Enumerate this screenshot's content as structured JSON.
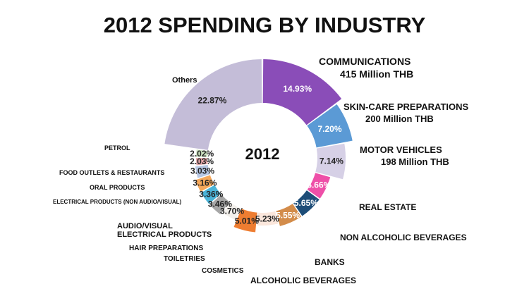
{
  "chart_data": {
    "type": "pie",
    "title": "2012 SPENDING BY INDUSTRY",
    "center_label": "2012",
    "slices": [
      {
        "name": "COMMUNICATIONS",
        "percent": 14.93,
        "value_label": "14.93%",
        "amount": "415 Million THB",
        "color": "#8a4db8"
      },
      {
        "name": "SKIN-CARE PREPARATIONS",
        "percent": 7.2,
        "value_label": "7.20%",
        "amount": "200 Million THB",
        "color": "#5b9ad5"
      },
      {
        "name": "MOTOR VEHICLES",
        "percent": 7.14,
        "value_label": "7.14%",
        "amount": "198 Million THB",
        "color": "#d6d0e6"
      },
      {
        "name": "REAL ESTATE",
        "percent": 5.66,
        "value_label": "5.66%",
        "color": "#ee4fa8"
      },
      {
        "name": "NON ALCOHOLIC BEVERAGES",
        "percent": 5.65,
        "value_label": "5.65%",
        "color": "#1e4d78"
      },
      {
        "name": "BANKS",
        "percent": 5.55,
        "value_label": "5.55%",
        "color": "#d38c4a"
      },
      {
        "name": "ALCOHOLIC BEVERAGES",
        "percent": 5.23,
        "value_label": "5.23%",
        "color": "#fbe7dc"
      },
      {
        "name": "COSMETICS",
        "percent": 5.01,
        "value_label": "5.01%",
        "color": "#ee7d31"
      },
      {
        "name": "TOILETRIES",
        "percent": 3.7,
        "value_label": "3.70%",
        "color": "#f3f0ec"
      },
      {
        "name": "HAIR PREPARATIONS",
        "percent": 3.46,
        "value_label": "3.46%",
        "color": "#a6a6a6"
      },
      {
        "name": "AUDIO/VISUAL ELECTRICAL PRODUCTS",
        "percent": 3.36,
        "value_label": "3.36%",
        "color": "#4bb4d8"
      },
      {
        "name": "ELECTRICAL PRODUCTS (NON AUDIO/VISUAL)",
        "percent": 3.16,
        "value_label": "3.16%",
        "color": "#f6a85a"
      },
      {
        "name": "ORAL PRODUCTS",
        "percent": 3.03,
        "value_label": "3.03%",
        "color": "#b7c7e3"
      },
      {
        "name": "FOOD OUTLETS & RESTAURANTS",
        "percent": 2.03,
        "value_label": "2.03%",
        "color": "#e7a9ab"
      },
      {
        "name": "PETROL",
        "percent": 2.02,
        "value_label": "2.02%",
        "color": "#cfe5c3"
      },
      {
        "name": "Others",
        "percent": 22.87,
        "value_label": "22.87%",
        "color": "#c4bdd8"
      }
    ]
  }
}
